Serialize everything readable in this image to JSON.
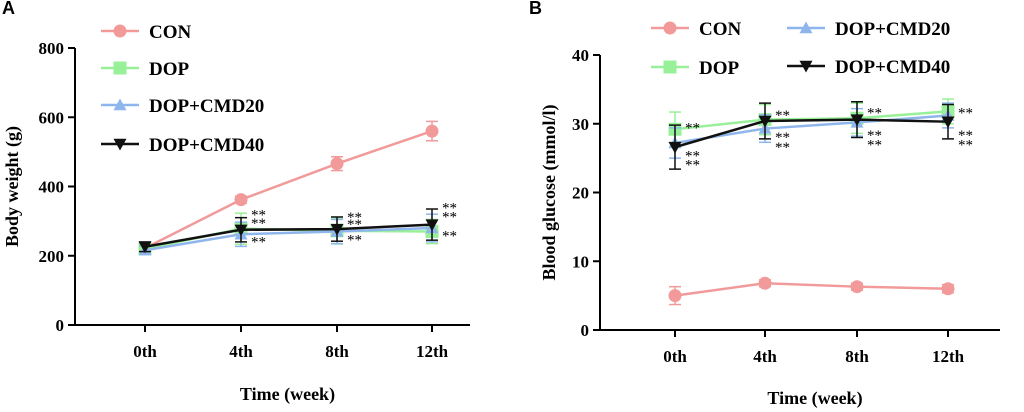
{
  "chart_data": [
    {
      "panel": "A",
      "type": "line",
      "xlabel": "Time (week)",
      "ylabel": "Body weight (g)",
      "categories": [
        "0th",
        "4th",
        "8th",
        "12th"
      ],
      "ylim": [
        0,
        800
      ],
      "yticks": [
        0,
        200,
        400,
        600,
        800
      ],
      "legend_position": "top-left",
      "series": [
        {
          "name": "CON",
          "color": "#f29a9a",
          "marker": "circle",
          "values": [
            222,
            362,
            466,
            560
          ],
          "errors": [
            14,
            10,
            20,
            28
          ]
        },
        {
          "name": "DOP",
          "color": "#98f098",
          "marker": "square",
          "values": [
            220,
            278,
            272,
            270
          ],
          "errors": [
            12,
            45,
            38,
            35
          ]
        },
        {
          "name": "DOP+CMD20",
          "color": "#8fb6ec",
          "marker": "triangle-up",
          "values": [
            216,
            262,
            270,
            280
          ],
          "errors": [
            12,
            35,
            35,
            40
          ]
        },
        {
          "name": "DOP+CMD40",
          "color": "#111111",
          "marker": "triangle-down",
          "values": [
            226,
            275,
            277,
            290
          ],
          "errors": [
            14,
            35,
            35,
            45
          ]
        }
      ],
      "annotations": [
        {
          "category": "4th",
          "labels": [
            "**",
            "**",
            "**"
          ],
          "label_values": [
            322,
            298,
            244
          ]
        },
        {
          "category": "8th",
          "labels": [
            "**",
            "**",
            "**"
          ],
          "label_values": [
            315,
            294,
            250
          ]
        },
        {
          "category": "12th",
          "labels": [
            "**",
            "**",
            "**"
          ],
          "label_values": [
            342,
            316,
            262
          ]
        }
      ]
    },
    {
      "panel": "B",
      "type": "line",
      "xlabel": "Time (week)",
      "ylabel": "Blood glucose (mmol/l)",
      "categories": [
        "0th",
        "4th",
        "8th",
        "12th"
      ],
      "ylim": [
        0,
        40
      ],
      "yticks": [
        0,
        10,
        20,
        30,
        40
      ],
      "legend_position": "top",
      "series": [
        {
          "name": "CON",
          "color": "#f29a9a",
          "marker": "circle",
          "values": [
            5.0,
            6.8,
            6.3,
            6.0
          ],
          "errors": [
            1.3,
            0.5,
            0.5,
            0.6
          ]
        },
        {
          "name": "DOP",
          "color": "#98f098",
          "marker": "square",
          "values": [
            29.2,
            30.6,
            30.8,
            31.8
          ],
          "errors": [
            2.5,
            2.2,
            2.2,
            1.8
          ]
        },
        {
          "name": "DOP+CMD20",
          "color": "#8fb6ec",
          "marker": "triangle-up",
          "values": [
            27.2,
            29.3,
            30.2,
            31.2
          ],
          "errors": [
            2.2,
            2.0,
            2.0,
            1.8
          ]
        },
        {
          "name": "DOP+CMD40",
          "color": "#111111",
          "marker": "triangle-down",
          "values": [
            26.6,
            30.4,
            30.6,
            30.3
          ],
          "errors": [
            3.2,
            2.6,
            2.6,
            2.5
          ]
        }
      ],
      "annotations": [
        {
          "category": "0th",
          "labels": [
            "**",
            "**",
            "**"
          ],
          "label_values": [
            29.6,
            25.5,
            24.2
          ]
        },
        {
          "category": "4th",
          "labels": [
            "**",
            "**",
            "**"
          ],
          "label_values": [
            31.4,
            28.2,
            26.8
          ]
        },
        {
          "category": "8th",
          "labels": [
            "**",
            "**",
            "**"
          ],
          "label_values": [
            31.8,
            28.5,
            27.1
          ]
        },
        {
          "category": "12th",
          "labels": [
            "**",
            "**",
            "**"
          ],
          "label_values": [
            31.8,
            28.5,
            27.1
          ]
        }
      ]
    }
  ]
}
